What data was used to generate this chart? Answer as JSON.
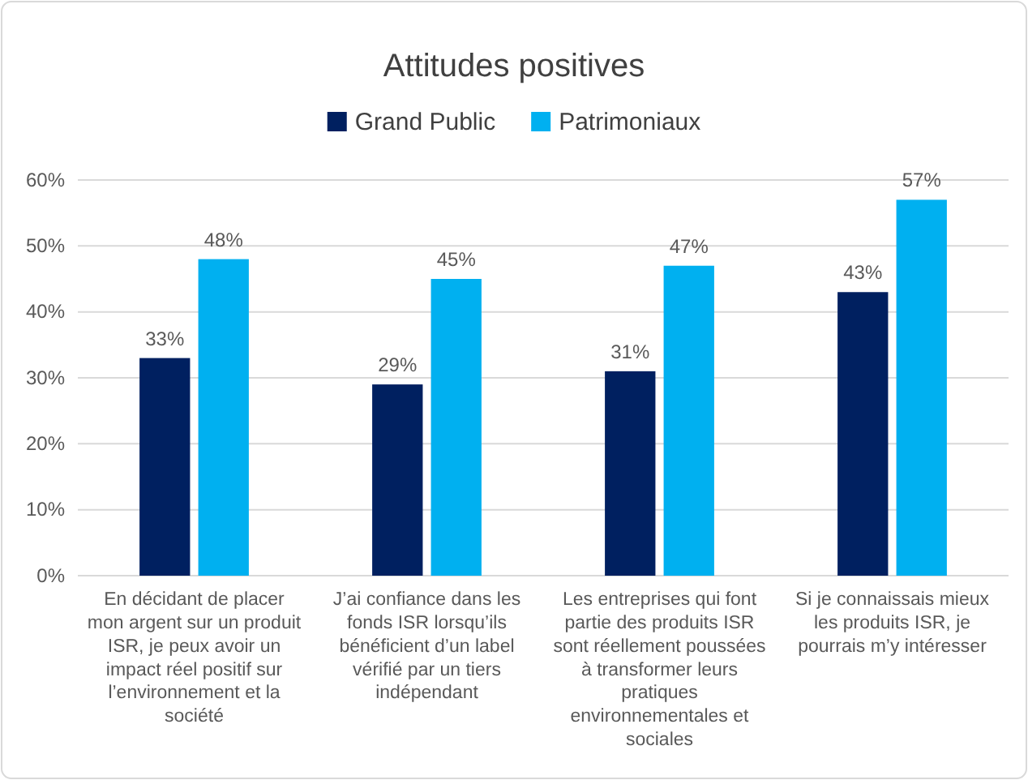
{
  "chart_data": {
    "type": "bar",
    "title": "Attitudes positives",
    "categories": [
      "En décidant de placer mon argent sur un produit ISR, je peux avoir un impact réel positif sur l’environnement et la société",
      "J’ai confiance dans les fonds ISR lorsqu’ils bénéficient d’un label vérifié par un tiers indépendant",
      "Les entreprises qui font partie des produits ISR sont réellement poussées à transformer leurs pratiques environnementales et sociales",
      "Si je connaissais mieux les produits ISR, je pourrais m’y intéresser"
    ],
    "series": [
      {
        "name": "Grand Public",
        "color": "#002060",
        "values": [
          33,
          29,
          31,
          43
        ],
        "value_labels": [
          "33%",
          "29%",
          "31%",
          "43%"
        ]
      },
      {
        "name": "Patrimoniaux",
        "color": "#00b0f0",
        "values": [
          48,
          45,
          47,
          57
        ],
        "value_labels": [
          "48%",
          "45%",
          "47%",
          "57%"
        ]
      }
    ],
    "ylim": [
      0,
      60
    ],
    "yticks": [
      {
        "value": 0,
        "label": "0%"
      },
      {
        "value": 10,
        "label": "10%"
      },
      {
        "value": 20,
        "label": "20%"
      },
      {
        "value": 30,
        "label": "30%"
      },
      {
        "value": 40,
        "label": "40%"
      },
      {
        "value": 50,
        "label": "50%"
      },
      {
        "value": 60,
        "label": "60%"
      }
    ],
    "grid": "y",
    "legend": "top"
  }
}
